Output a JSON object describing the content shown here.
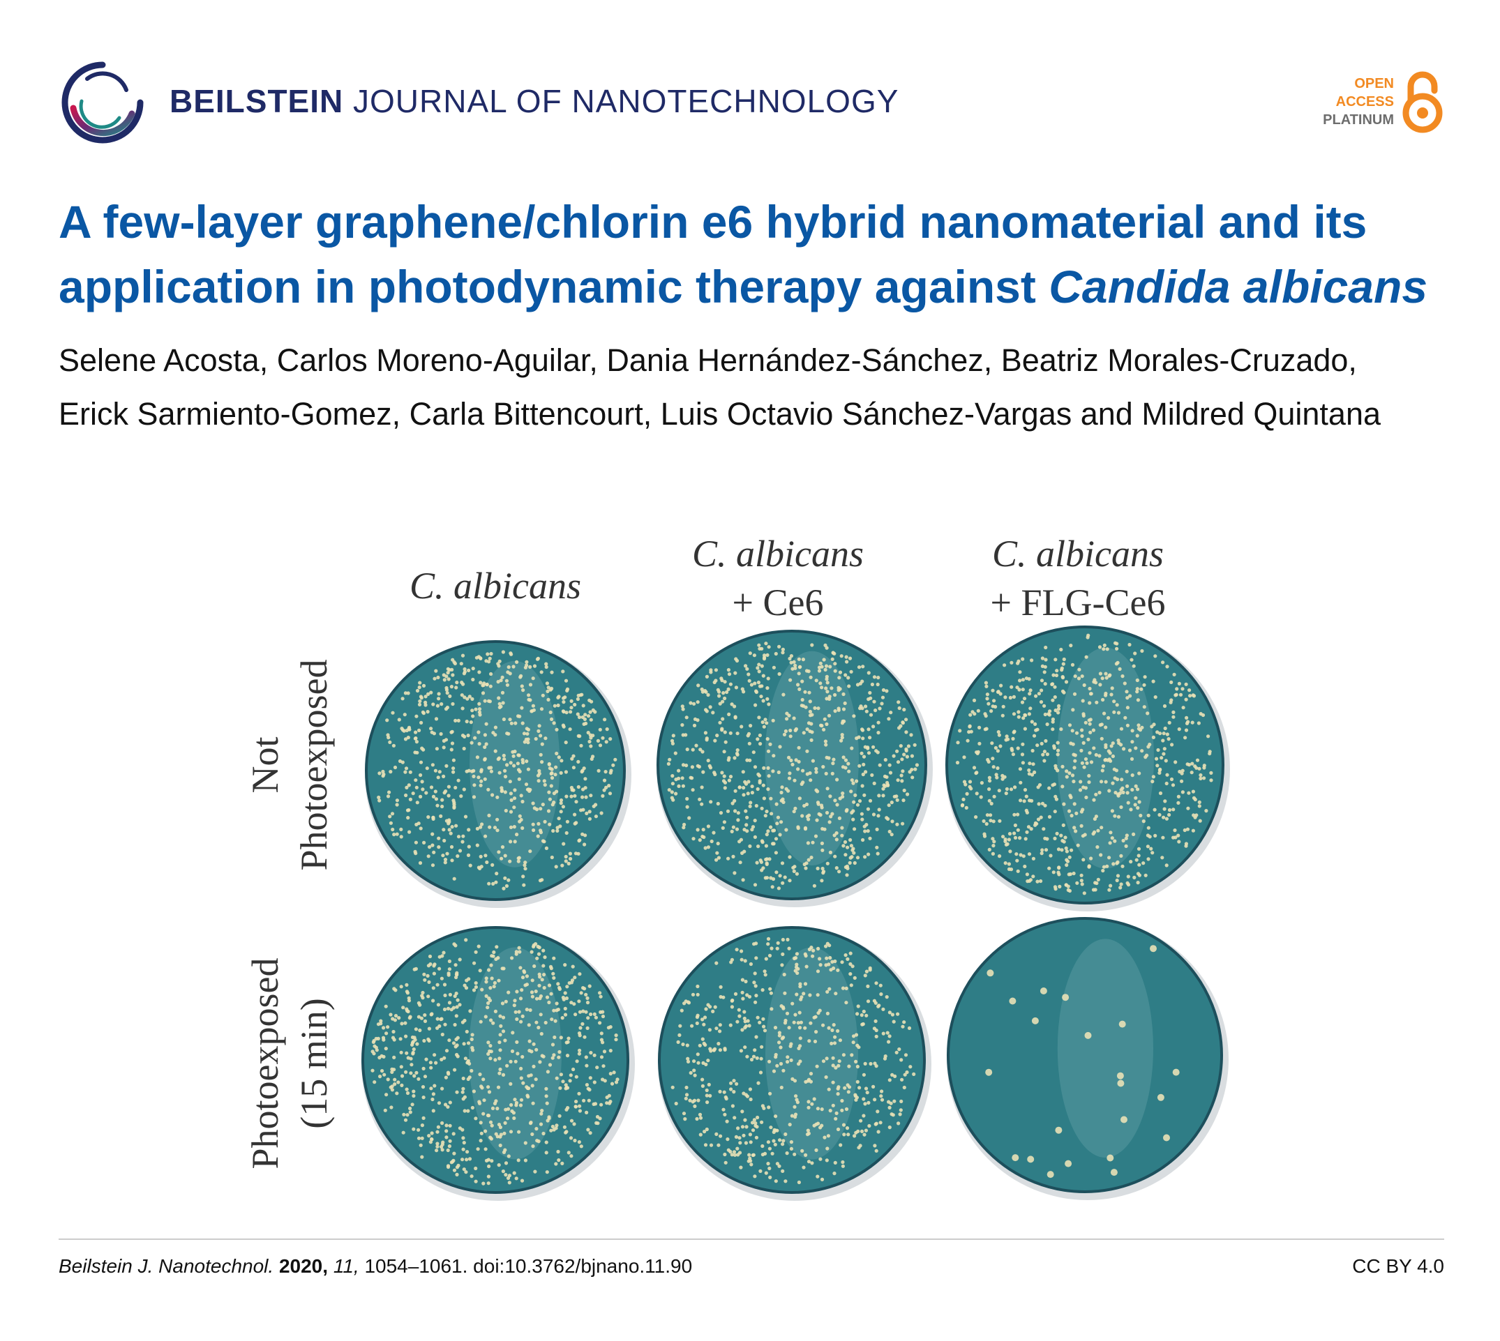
{
  "header": {
    "journal_bold": "BEILSTEIN",
    "journal_rest": "JOURNAL OF NANOTECHNOLOGY",
    "badge": {
      "line1": "OPEN",
      "line2": "ACCESS",
      "line3": "PLATINUM"
    }
  },
  "article": {
    "title_main": "A few-layer graphene/chlorin e6 hybrid nanomaterial and its application in photodynamic therapy against ",
    "title_italic": "Candida albicans",
    "authors": "Selene Acosta, Carlos Moreno-Aguilar, Dania Hernández-Sánchez, Beatriz Morales-Cruzado, Erick Sarmiento-Gomez, Carla Bittencourt, Luis Octavio Sánchez-Vargas and Mildred Quintana"
  },
  "figure": {
    "columns": [
      {
        "line1": "C. albicans",
        "line2": ""
      },
      {
        "line1": "C. albicans",
        "line2": "+ Ce6"
      },
      {
        "line1": "C. albicans",
        "line2": "+ FLG-Ce6"
      }
    ],
    "rows": [
      {
        "line1": "Not",
        "line2": "Photoexposed"
      },
      {
        "line1": "Photoexposed",
        "line2": "(15 min)"
      }
    ]
  },
  "footer": {
    "journal_abbrev": "Beilstein J. Nanotechnol.",
    "year": "2020,",
    "volume": "11,",
    "pages_doi": "1054–1061. doi:10.3762/bjnano.11.90",
    "license": "CC BY 4.0"
  },
  "colors": {
    "title": "#0a57a4",
    "journal": "#1f2a66",
    "badge_orange": "#f28a22",
    "agar": "#2f7d86",
    "colony": "#e9e1b6"
  }
}
